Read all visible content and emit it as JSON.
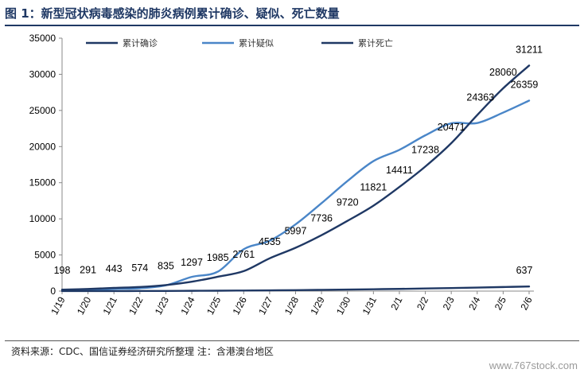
{
  "header": {
    "title": "图 1：新型冠状病毒感染的肺炎病例累计确诊、疑似、死亡数量"
  },
  "footer": {
    "source": "资料来源：CDC、国信证券经济研究所整理  注：含港澳台地区",
    "watermark": "www.767stock.com"
  },
  "colors": {
    "confirmed": "#1f3864",
    "suspected": "#4a86c8",
    "deaths": "#1f3864",
    "title": "#1f3864"
  },
  "chart_data": {
    "type": "line",
    "categories": [
      "1/19",
      "1/20",
      "1/21",
      "1/22",
      "1/23",
      "1/24",
      "1/25",
      "1/26",
      "1/27",
      "1/28",
      "1/29",
      "1/30",
      "1/31",
      "2/1",
      "2/2",
      "2/3",
      "2/4",
      "2/5",
      "2/6"
    ],
    "ylim": [
      0,
      35000
    ],
    "yticks": [
      0,
      5000,
      10000,
      15000,
      20000,
      25000,
      30000,
      35000
    ],
    "grid": false,
    "legend_position": "top",
    "series": [
      {
        "name": "累计确诊",
        "values": [
          198,
          291,
          443,
          574,
          835,
          1297,
          1985,
          2761,
          4535,
          5997,
          7736,
          9720,
          11821,
          14411,
          17238,
          20471,
          24363,
          28060,
          31211
        ],
        "labels_shown": true
      },
      {
        "name": "累计疑似",
        "values": [
          54,
          100,
          300,
          400,
          800,
          1965,
          2684,
          5794,
          6973,
          9239,
          12167,
          15238,
          17988,
          19544,
          21558,
          23214,
          23260,
          24702,
          26359
        ],
        "labels_shown_for": [
          "2/6"
        ]
      },
      {
        "name": "累计死亡",
        "values": [
          3,
          6,
          9,
          17,
          25,
          41,
          56,
          80,
          106,
          132,
          170,
          213,
          259,
          304,
          361,
          425,
          491,
          563,
          637
        ],
        "labels_shown_for": [
          "2/6"
        ]
      }
    ]
  }
}
